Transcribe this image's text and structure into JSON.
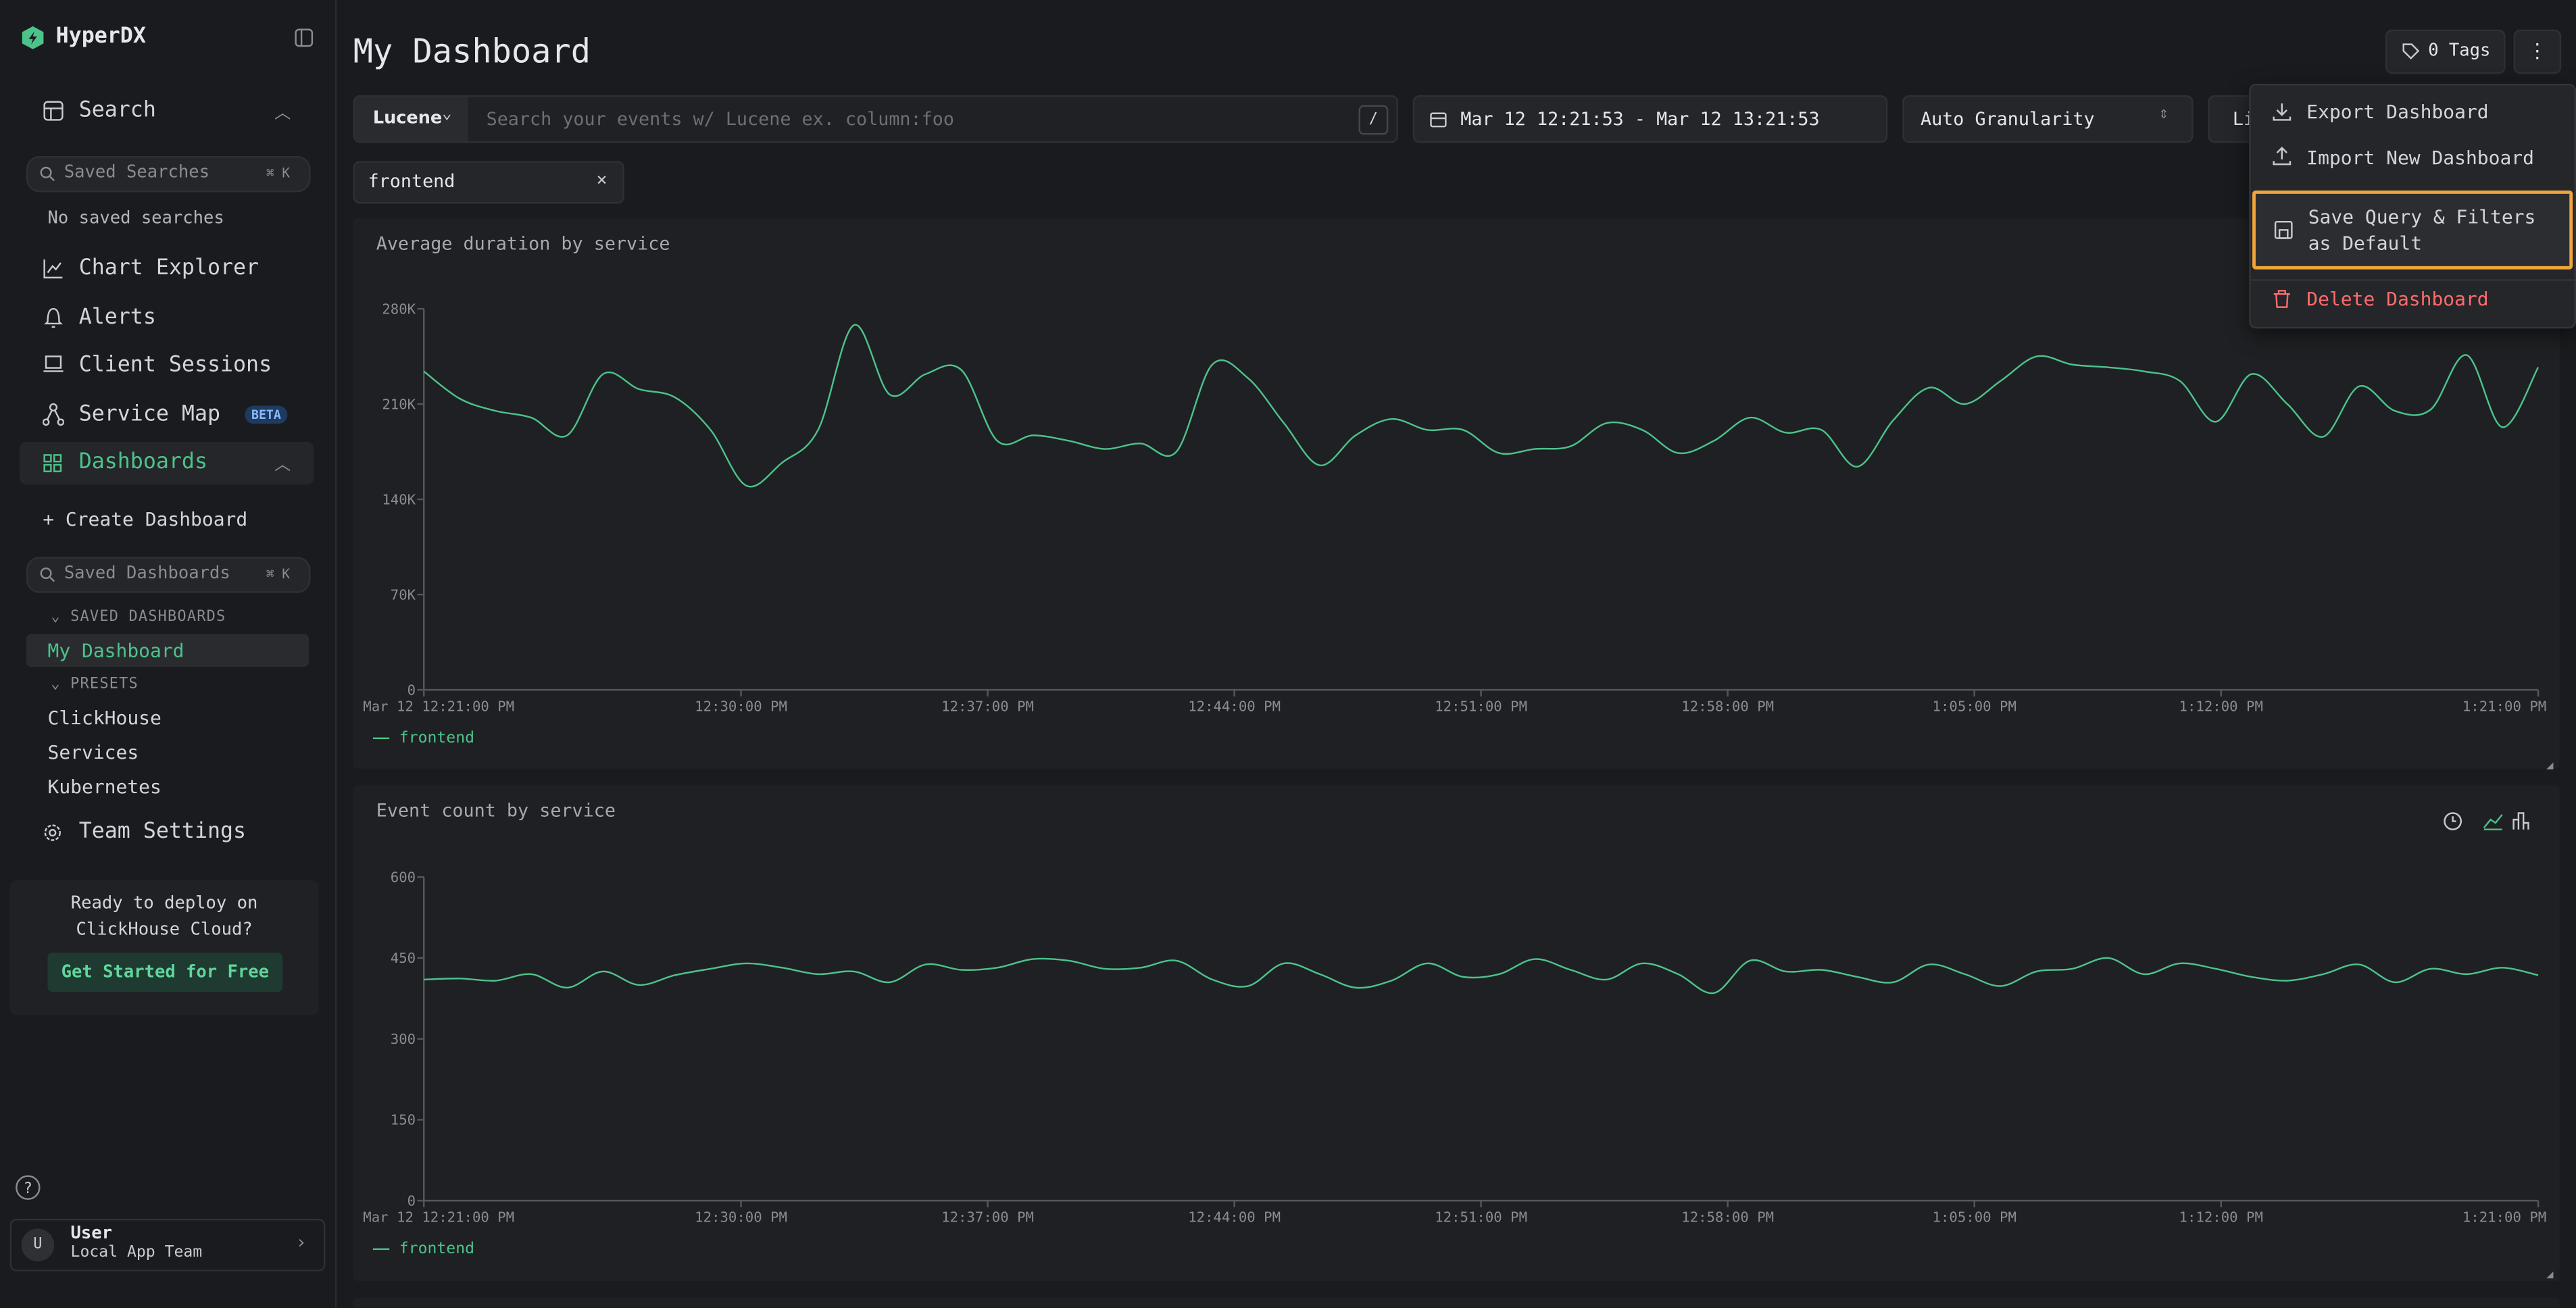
{
  "sidebar": {
    "brand": "HyperDX",
    "search": "Search",
    "saved_searches_placeholder": "Saved Searches",
    "shortcut": "⌘ K",
    "no_saved_searches": "No saved searches",
    "nav": [
      "Chart Explorer",
      "Alerts",
      "Client Sessions",
      "Service Map"
    ],
    "beta": "BETA",
    "dashboards": "Dashboards",
    "create_dashboard": "+ Create Dashboard",
    "saved_dashboards_placeholder": "Saved Dashboards",
    "saved_dashboards_heading": "SAVED DASHBOARDS",
    "saved_dashboards": [
      "My Dashboard"
    ],
    "presets_heading": "PRESETS",
    "presets": [
      "ClickHouse",
      "Services",
      "Kubernetes"
    ],
    "team_settings": "Team Settings",
    "promo": {
      "text": "Ready to deploy on ClickHouse Cloud?",
      "button": "Get Started for Free"
    },
    "user": {
      "initial": "U",
      "name": "User",
      "team": "Local App Team"
    }
  },
  "header": {
    "title": "My Dashboard",
    "tags": "0 Tags",
    "query_language": "Lucene",
    "search_placeholder": "Search your events w/ Lucene ex. column:foo",
    "search_shortcut": "/",
    "time_range": "Mar 12 12:21:53 - Mar 12 13:21:53",
    "granularity": "Auto Granularity",
    "live": "Live",
    "filter": "frontend"
  },
  "menu": [
    "Export Dashboard",
    "Import New Dashboard",
    "Save Query & Filters as Default",
    "Delete Dashboard"
  ],
  "chart_data": [
    {
      "type": "line",
      "title": "Average duration by service",
      "ylim": [
        0,
        280000
      ],
      "yticks": [
        0,
        {
          "value": 70000,
          "label": "70K"
        },
        {
          "value": 140000,
          "label": "140K"
        },
        {
          "value": 210000,
          "label": "210K"
        },
        {
          "value": 280000,
          "label": "280K"
        }
      ],
      "xticks": [
        "Mar 12 12:21:00 PM",
        "12:30:00 PM",
        "12:37:00 PM",
        "12:44:00 PM",
        "12:51:00 PM",
        "12:58:00 PM",
        "1:05:00 PM",
        "1:12:00 PM",
        "1:21:00 PM"
      ],
      "series": [
        {
          "name": "frontend",
          "color": "#4cc38a",
          "values": [
            234000,
            214000,
            205000,
            200000,
            187000,
            232000,
            221000,
            215000,
            191000,
            150000,
            167000,
            191000,
            268000,
            217000,
            232000,
            235000,
            183000,
            187000,
            183000,
            177000,
            181000,
            175000,
            239000,
            229000,
            196000,
            165000,
            187000,
            199000,
            191000,
            191000,
            174000,
            177000,
            179000,
            196000,
            191000,
            174000,
            183000,
            200000,
            189000,
            191000,
            164000,
            198000,
            222000,
            210000,
            227000,
            245000,
            239000,
            237000,
            234000,
            227000,
            197000,
            232000,
            210000,
            186000,
            223000,
            205000,
            206000,
            246000,
            193000,
            237000
          ]
        }
      ]
    },
    {
      "type": "line",
      "title": "Event count by service",
      "ylim": [
        0,
        600
      ],
      "yticks": [
        0,
        150,
        300,
        450,
        600
      ],
      "xticks": [
        "Mar 12 12:21:00 PM",
        "12:30:00 PM",
        "12:37:00 PM",
        "12:44:00 PM",
        "12:51:00 PM",
        "12:58:00 PM",
        "1:05:00 PM",
        "1:12:00 PM",
        "1:21:00 PM"
      ],
      "series": [
        {
          "name": "frontend",
          "color": "#4cc38a",
          "values": [
            410,
            412,
            408,
            420,
            395,
            425,
            400,
            418,
            430,
            440,
            432,
            420,
            425,
            405,
            438,
            428,
            432,
            448,
            445,
            430,
            432,
            445,
            410,
            398,
            440,
            420,
            395,
            408,
            440,
            415,
            420,
            448,
            428,
            410,
            440,
            420,
            385,
            445,
            425,
            428,
            415,
            405,
            438,
            420,
            398,
            425,
            430,
            450,
            420,
            440,
            430,
            415,
            408,
            420,
            438,
            405,
            430,
            420,
            432,
            418
          ]
        }
      ]
    }
  ]
}
